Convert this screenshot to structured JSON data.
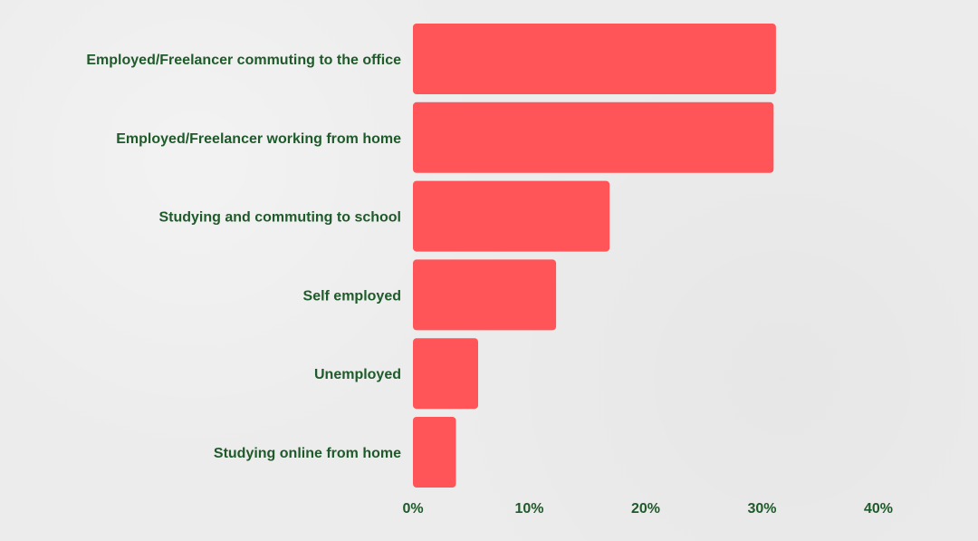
{
  "chart_data": {
    "type": "bar",
    "orientation": "horizontal",
    "title": "",
    "xlabel": "",
    "ylabel": "",
    "categories": [
      "Employed/Freelancer commuting to the office",
      "Employed/Freelancer working from home",
      "Studying and commuting to school",
      "Self employed",
      "Unemployed",
      "Studying online from home"
    ],
    "values": [
      31.2,
      31.0,
      16.9,
      12.3,
      5.6,
      3.7
    ],
    "xlim": [
      0,
      40
    ],
    "ticks": [
      "0%",
      "10%",
      "20%",
      "30%",
      "40%"
    ],
    "tick_values": [
      0,
      10,
      20,
      30,
      40
    ],
    "grid": false,
    "legend": "none",
    "bar_color": "#ff5558",
    "text_color": "#1f5a2a"
  }
}
